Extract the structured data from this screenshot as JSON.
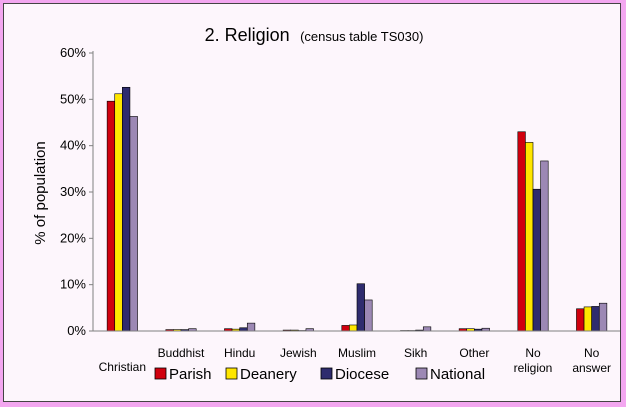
{
  "chart_data": {
    "type": "bar",
    "title": "2.  Religion",
    "subtitle": "(census table TS030)",
    "ylabel": "% of population",
    "xlabel": "",
    "ylim": [
      0,
      60
    ],
    "yticks": [
      "0%",
      "10%",
      "20%",
      "30%",
      "40%",
      "50%",
      "60%"
    ],
    "grid": false,
    "legend_position": "bottom",
    "categories": [
      [
        "Christian"
      ],
      [
        "Buddhist"
      ],
      [
        "Hindu"
      ],
      [
        "Jewish"
      ],
      [
        "Muslim"
      ],
      [
        "Sikh"
      ],
      [
        "Other"
      ],
      [
        "No",
        "religion"
      ],
      [
        "No",
        "answer"
      ]
    ],
    "series": [
      {
        "name": "Parish",
        "color": "#d0000e",
        "values": [
          49.6,
          0.3,
          0.5,
          0.2,
          1.2,
          0.1,
          0.5,
          43.0,
          4.8
        ]
      },
      {
        "name": "Deanery",
        "color": "#ffe600",
        "values": [
          51.2,
          0.3,
          0.4,
          0.2,
          1.3,
          0.1,
          0.5,
          40.7,
          5.2
        ]
      },
      {
        "name": "Diocese",
        "color": "#2f2c6e",
        "values": [
          52.6,
          0.3,
          0.7,
          0.1,
          10.2,
          0.2,
          0.4,
          30.6,
          5.3
        ]
      },
      {
        "name": "National",
        "color": "#9c88b4",
        "values": [
          46.3,
          0.5,
          1.7,
          0.5,
          6.7,
          0.9,
          0.6,
          36.7,
          6.0
        ]
      }
    ]
  }
}
